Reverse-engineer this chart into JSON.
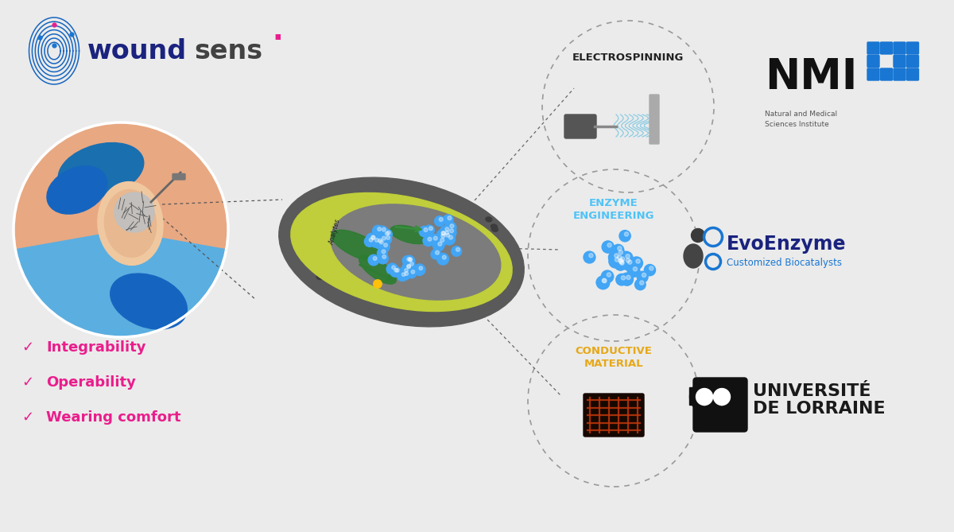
{
  "bg_color": "#ebebeb",
  "wound_color": "#1a237e",
  "sens_color": "#424242",
  "dot_color": "#e91e8c",
  "features": [
    "Integrability",
    "Operability",
    "Wearing comfort"
  ],
  "feature_color": "#e91e8c",
  "circle1_label": "ELECTROSPINNING",
  "circle2_label": "ENZYME\nENGINEERING",
  "circle3_label": "CONDUCTIVE\nMATERIAL",
  "circle1_color": "#222222",
  "circle2_color": "#4fc3f7",
  "circle3_color": "#e6a817",
  "nmi_text": "NMI",
  "nmi_sub": "Natural and Medical\nSciences Institute",
  "nmi_cross_color": "#1976d2",
  "evo_name": "EvoEnzyme",
  "evo_sub": "Customized Biocatalysts",
  "evo_name_color": "#1a237e",
  "evo_sub_color": "#1976d2",
  "univ_line1": "UNIVERSITÉ",
  "univ_line2": "DE LORRAINE",
  "univ_color": "#1a1a1a"
}
